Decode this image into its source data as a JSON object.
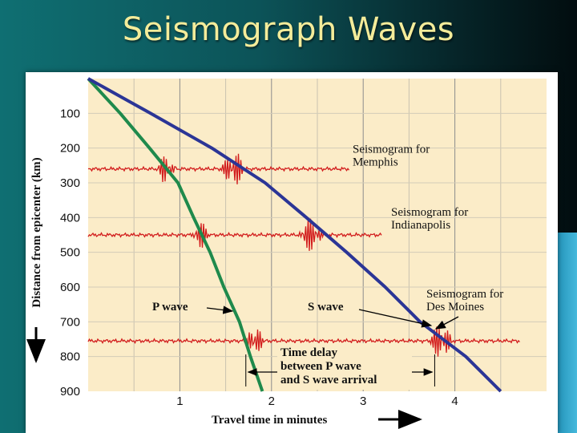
{
  "slide": {
    "title": "Seismograph Waves"
  },
  "chart_data": {
    "type": "line",
    "xlabel": "Travel time in minutes",
    "ylabel": "Distance from epicenter (km)",
    "xlim": [
      0,
      5
    ],
    "ylim": [
      0,
      900
    ],
    "x_ticks": [
      1,
      2,
      3,
      4
    ],
    "y_ticks": [
      100,
      200,
      300,
      400,
      500,
      600,
      700,
      800,
      900
    ],
    "grid": true,
    "series": [
      {
        "name": "P wave",
        "color": "#1f8a4c",
        "points": [
          [
            0,
            0
          ],
          [
            0.35,
            100
          ],
          [
            0.67,
            200
          ],
          [
            0.98,
            300
          ],
          [
            1.15,
            400
          ],
          [
            1.33,
            500
          ],
          [
            1.48,
            600
          ],
          [
            1.65,
            700
          ],
          [
            1.77,
            800
          ],
          [
            1.9,
            900
          ]
        ]
      },
      {
        "name": "S wave",
        "color": "#2b3596",
        "points": [
          [
            0,
            0
          ],
          [
            0.68,
            100
          ],
          [
            1.35,
            200
          ],
          [
            1.93,
            300
          ],
          [
            2.38,
            400
          ],
          [
            2.82,
            500
          ],
          [
            3.24,
            600
          ],
          [
            3.62,
            700
          ],
          [
            4.12,
            800
          ],
          [
            4.5,
            900
          ]
        ]
      }
    ],
    "seismograms": [
      {
        "label": [
          "Seismogram for",
          "Memphis"
        ],
        "distance_km": 260,
        "p_arrival_min": 0.8,
        "s_arrival_min": 1.52,
        "trace_end_min": 2.85
      },
      {
        "label": [
          "Seismogram for",
          "Indianapolis"
        ],
        "distance_km": 450,
        "p_arrival_min": 1.18,
        "s_arrival_min": 2.37,
        "trace_end_min": 3.2
      },
      {
        "label": [
          "Seismogram for",
          "Des Moines"
        ],
        "distance_km": 755,
        "p_arrival_min": 1.77,
        "s_arrival_min": 3.78,
        "trace_end_min": 4.72
      }
    ],
    "annotations": {
      "p_wave_label": "P wave",
      "s_wave_label": "S wave",
      "time_delay_lines": [
        "Time delay",
        "between P wave",
        "and S wave arrival"
      ],
      "time_delay_range_min": [
        1.72,
        3.78
      ]
    }
  }
}
